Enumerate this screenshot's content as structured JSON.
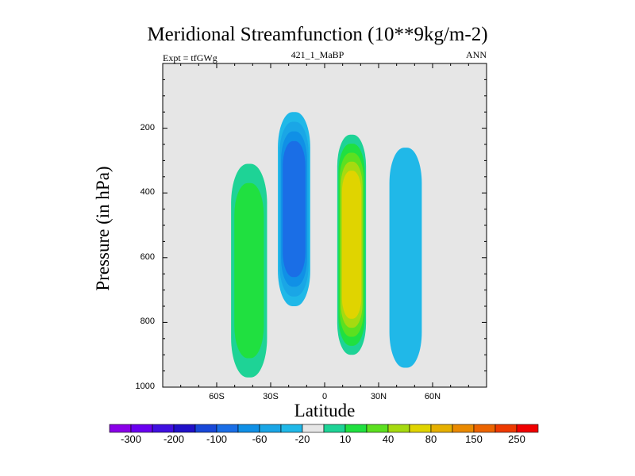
{
  "chart_data": {
    "type": "filled-contour",
    "title": "Meridional Streamfunction (10**9kg/m-2)",
    "subtitle": "421_1_MaBP",
    "left_note": "Expt = tfGWg",
    "right_note": "ANN",
    "xlabel": "Latitude",
    "ylabel": "Pressure (in hPa)",
    "xlim": [
      -90,
      90
    ],
    "ylim": [
      1000,
      0
    ],
    "x_ticks": [
      {
        "value": -60,
        "label": "60S"
      },
      {
        "value": -30,
        "label": "30S"
      },
      {
        "value": 0,
        "label": "0"
      },
      {
        "value": 30,
        "label": "30N"
      },
      {
        "value": 60,
        "label": "60N"
      }
    ],
    "y_ticks": [
      {
        "value": 200,
        "label": "200"
      },
      {
        "value": 400,
        "label": "400"
      },
      {
        "value": 600,
        "label": "600"
      },
      {
        "value": 800,
        "label": "800"
      },
      {
        "value": 1000,
        "label": "1000"
      }
    ],
    "colorbar": {
      "colors": [
        "#8a00e8",
        "#6a00f0",
        "#4010e0",
        "#2010c8",
        "#1848d8",
        "#1a6ee6",
        "#1090e6",
        "#1aa6e6",
        "#20b8e8",
        "#e6e6e6",
        "#1ed396",
        "#20e040",
        "#5ce020",
        "#a6da10",
        "#e0d400",
        "#e6b000",
        "#ea8a00",
        "#ec6400",
        "#ee3a00",
        "#f00000"
      ],
      "labels": [
        "-300",
        "-200",
        "-100",
        "-60",
        "-20",
        "10",
        "40",
        "80",
        "150",
        "250"
      ]
    },
    "cells": [
      {
        "name": "southern-polar-weak-cell",
        "lat": -42,
        "p": 640,
        "halfwidth_deg": 10,
        "halfheight_hpa": 330,
        "color_index": 11
      },
      {
        "name": "southern-hadley-cell",
        "lat": -17,
        "p": 450,
        "halfwidth_deg": 9,
        "halfheight_hpa": 300,
        "color_index": 5
      },
      {
        "name": "northern-hadley-cell",
        "lat": 15,
        "p": 560,
        "halfwidth_deg": 8,
        "halfheight_hpa": 340,
        "color_index": 14
      },
      {
        "name": "northern-ferrel-cell",
        "lat": 45,
        "p": 600,
        "halfwidth_deg": 9,
        "halfheight_hpa": 340,
        "color_index": 8
      }
    ]
  }
}
